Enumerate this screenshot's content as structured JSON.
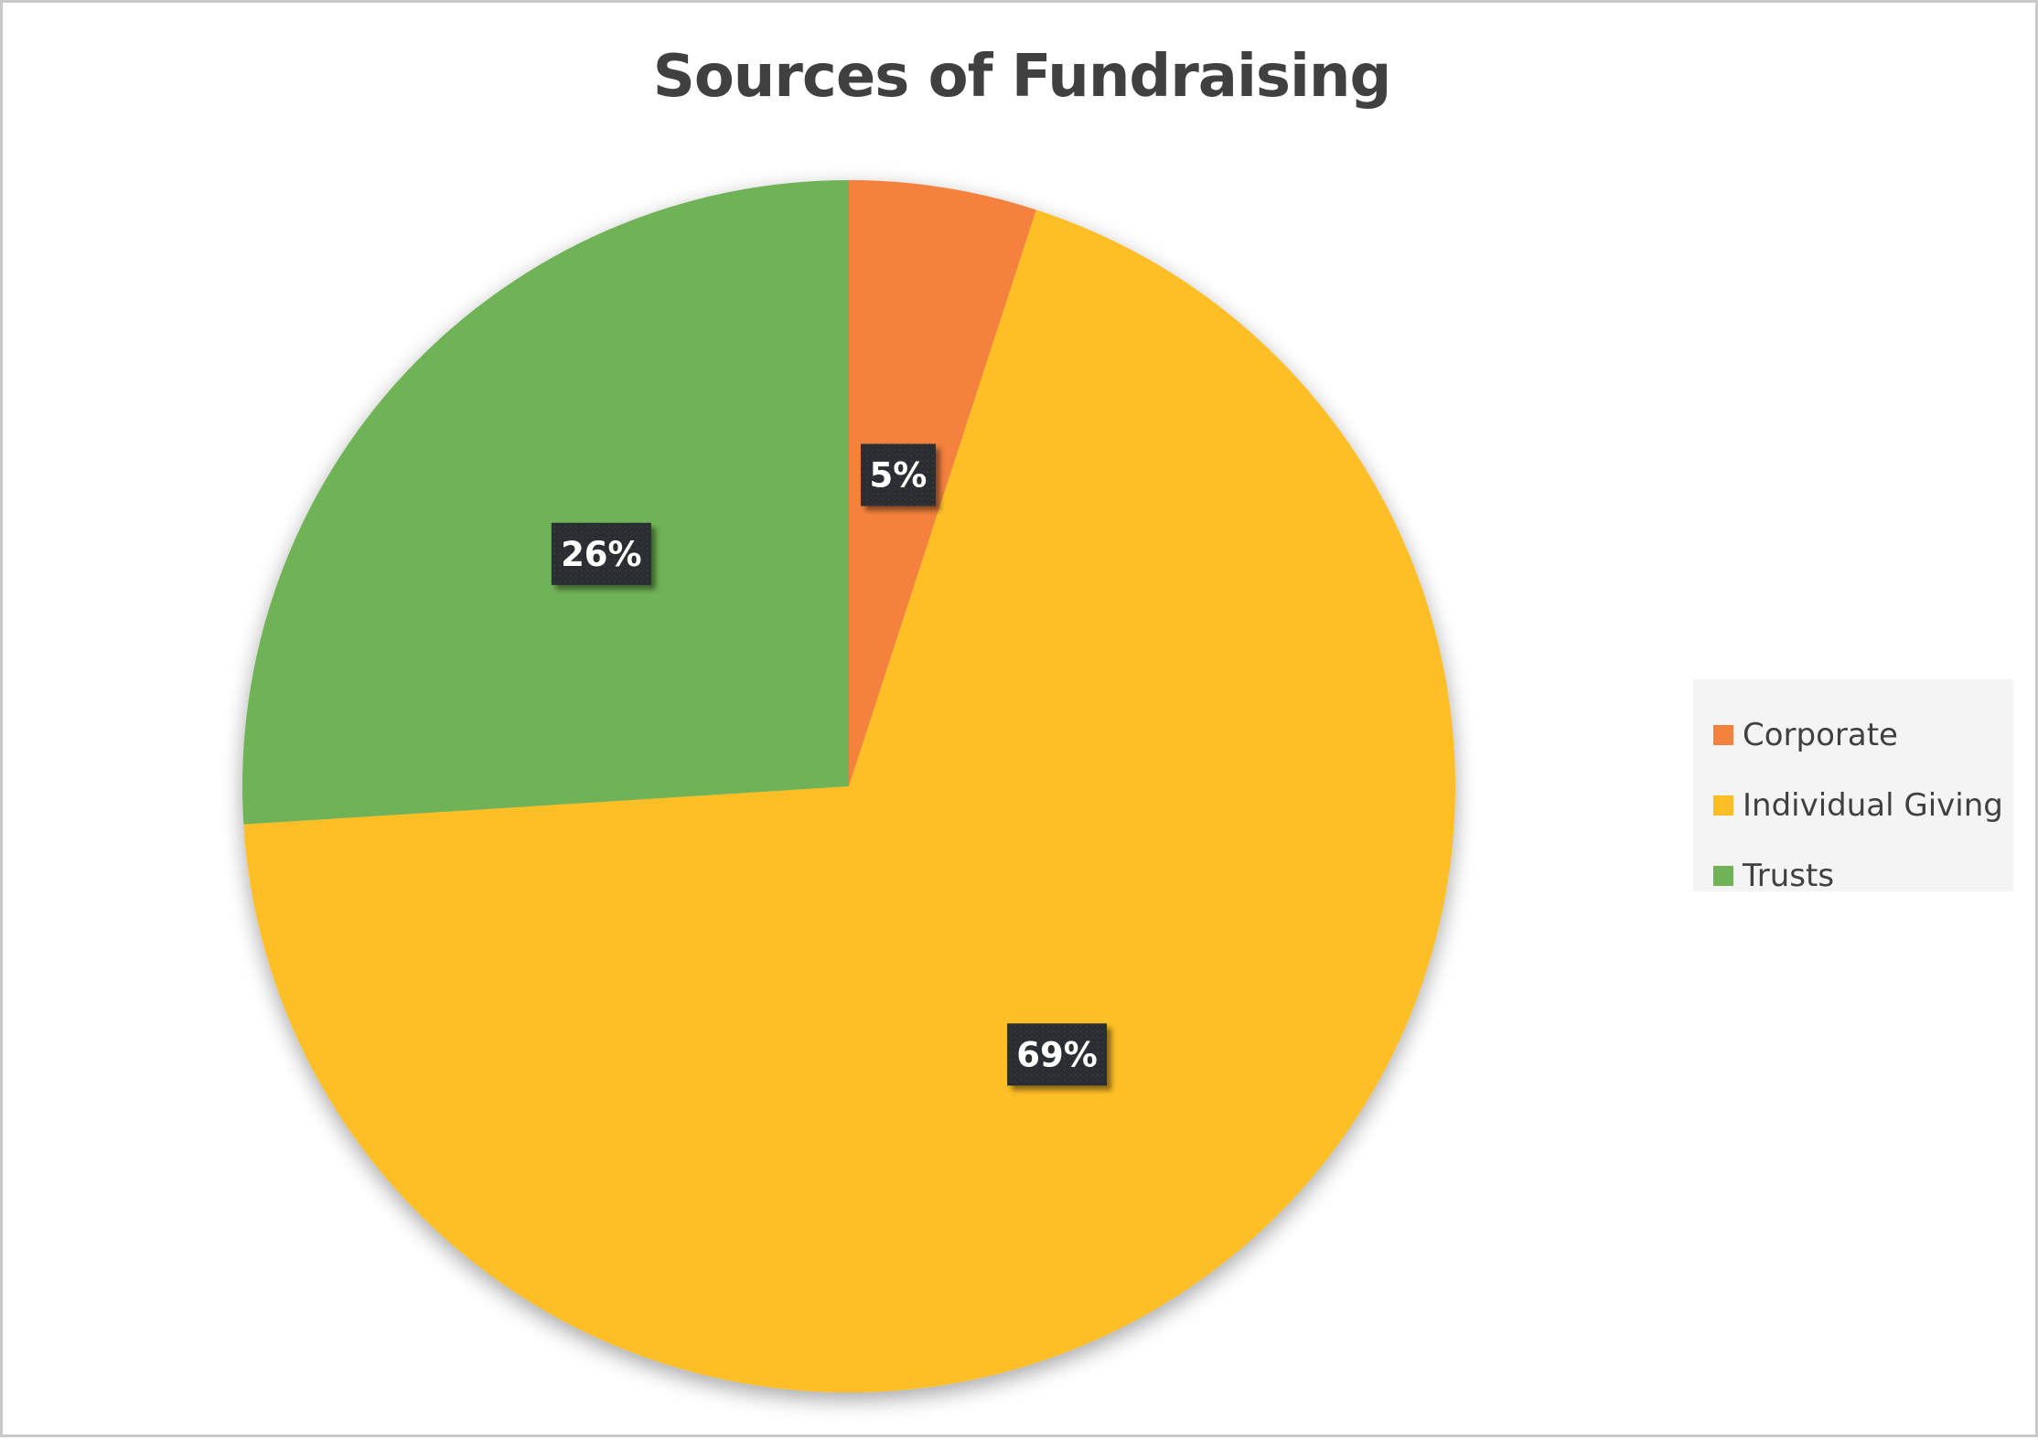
{
  "chart_data": {
    "type": "pie",
    "title": "Sources of Fundraising",
    "categories": [
      "Corporate",
      "Individual Giving",
      "Trusts"
    ],
    "values": [
      5,
      69,
      26
    ],
    "data_labels": [
      "5%",
      "69%",
      "26%"
    ],
    "colors": [
      "#f4813d",
      "#fdbe26",
      "#6fb257"
    ],
    "start_angle_deg": 0,
    "direction": "clockwise",
    "legend_position": "right",
    "data_label_style": "dark boxes with white bold text"
  }
}
